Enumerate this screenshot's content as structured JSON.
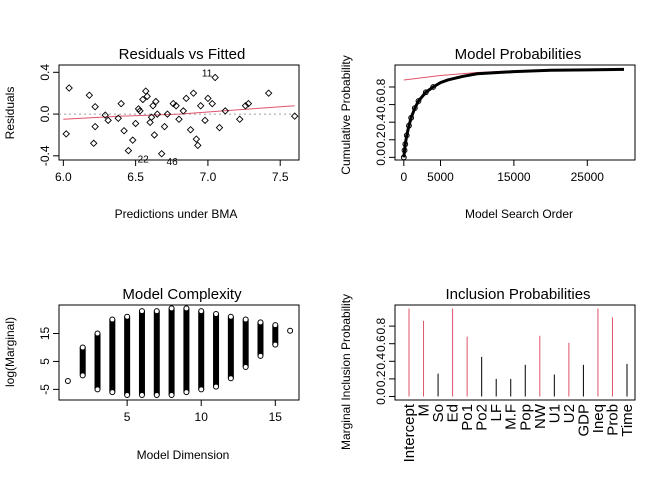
{
  "colors": {
    "red": "#DF536B",
    "black": "#000000",
    "gray": "#9E9E9E"
  },
  "chart_data": [
    {
      "type": "scatter",
      "title": "Residuals vs Fitted",
      "xlabel": "Predictions under BMA",
      "ylabel": "Residuals",
      "xlim": [
        5.97,
        7.63
      ],
      "ylim": [
        -0.44,
        0.47
      ],
      "xticks": [
        "6.0",
        "6.5",
        "7.0",
        "7.5"
      ],
      "yticks": [
        "-0.4",
        "0.0",
        "0.4"
      ],
      "reference_line": 0,
      "smooth": [
        [
          6.0,
          -0.05
        ],
        [
          6.4,
          -0.02
        ],
        [
          6.8,
          0.0
        ],
        [
          7.2,
          0.04
        ],
        [
          7.6,
          0.08
        ]
      ],
      "points": [
        [
          6.02,
          -0.19
        ],
        [
          6.04,
          0.25
        ],
        [
          6.18,
          0.18
        ],
        [
          6.21,
          -0.28
        ],
        [
          6.22,
          0.07
        ],
        [
          6.22,
          -0.12
        ],
        [
          6.29,
          -0.01
        ],
        [
          6.31,
          -0.06
        ],
        [
          6.38,
          -0.04
        ],
        [
          6.4,
          0.1
        ],
        [
          6.42,
          -0.16
        ],
        [
          6.45,
          -0.35
        ],
        [
          6.48,
          -0.25
        ],
        [
          6.5,
          -0.09
        ],
        [
          6.52,
          0.05
        ],
        [
          6.53,
          0.03
        ],
        [
          6.55,
          0.14
        ],
        [
          6.57,
          0.22
        ],
        [
          6.58,
          0.17
        ],
        [
          6.6,
          -0.08
        ],
        [
          6.61,
          -0.03
        ],
        [
          6.62,
          0.08
        ],
        [
          6.63,
          -0.2
        ],
        [
          6.64,
          0.12
        ],
        [
          6.65,
          0.0
        ],
        [
          6.68,
          -0.38
        ],
        [
          6.7,
          -0.12
        ],
        [
          6.72,
          0.0
        ],
        [
          6.76,
          0.1
        ],
        [
          6.78,
          0.08
        ],
        [
          6.8,
          -0.05
        ],
        [
          6.83,
          0.03
        ],
        [
          6.85,
          0.15
        ],
        [
          6.88,
          -0.15
        ],
        [
          6.9,
          0.2
        ],
        [
          6.92,
          -0.24
        ],
        [
          6.93,
          -0.3
        ],
        [
          6.95,
          0.08
        ],
        [
          6.98,
          -0.06
        ],
        [
          7.0,
          0.15
        ],
        [
          7.03,
          0.1
        ],
        [
          7.05,
          0.35
        ],
        [
          7.08,
          -0.13
        ],
        [
          7.12,
          0.03
        ],
        [
          7.22,
          -0.05
        ],
        [
          7.26,
          0.08
        ],
        [
          7.28,
          0.1
        ],
        [
          7.42,
          0.2
        ],
        [
          7.6,
          -0.02
        ]
      ],
      "annotations": [
        {
          "label": "11",
          "x": 7.0,
          "y": 0.35
        },
        {
          "label": "22",
          "x": 6.5,
          "y": -0.38
        },
        {
          "label": "46",
          "x": 6.7,
          "y": -0.4
        }
      ]
    },
    {
      "type": "line",
      "title": "Model Probabilities",
      "xlabel": "Model Search Order",
      "ylabel": "Cumulative Probability",
      "xlim": [
        -1200,
        31500
      ],
      "ylim": [
        -0.03,
        1.05
      ],
      "xticks": [
        "0",
        "5000",
        "15000",
        "25000"
      ],
      "yticks": [
        "0.0",
        "0.2",
        "0.4",
        "0.6",
        "0.8"
      ],
      "series": [
        {
          "color": "#DF536B",
          "x": [
            0,
            5000,
            10000,
            15000,
            20000,
            25000,
            30000
          ],
          "y": [
            0.88,
            0.93,
            0.965,
            0.985,
            0.995,
            0.998,
            1.0
          ]
        },
        {
          "color": "#000000",
          "x": [
            0,
            100,
            200,
            400,
            700,
            1000,
            1500,
            2000,
            3000,
            4000,
            5000,
            6000,
            8000,
            10000,
            12000,
            15000,
            20000,
            25000,
            30000
          ],
          "y": [
            0.0,
            0.08,
            0.15,
            0.25,
            0.36,
            0.45,
            0.56,
            0.64,
            0.74,
            0.8,
            0.85,
            0.88,
            0.92,
            0.95,
            0.96,
            0.975,
            0.99,
            0.995,
            1.0
          ]
        }
      ]
    },
    {
      "type": "scatter",
      "title": "Model Complexity",
      "xlabel": "Model Dimension",
      "ylabel": "log(Marginal)",
      "xlim": [
        0.4,
        16.6
      ],
      "ylim": [
        -8.8,
        25.2
      ],
      "xticks": [
        "5",
        "10",
        "15"
      ],
      "yticks": [
        "-5",
        "5",
        "15"
      ],
      "columns": [
        {
          "dim": 1,
          "min": -2,
          "max": -2
        },
        {
          "dim": 2,
          "min": 0,
          "max": 10
        },
        {
          "dim": 3,
          "min": -5,
          "max": 15
        },
        {
          "dim": 4,
          "min": -6,
          "max": 20
        },
        {
          "dim": 5,
          "min": -7,
          "max": 21
        },
        {
          "dim": 6,
          "min": -7,
          "max": 23
        },
        {
          "dim": 7,
          "min": -7,
          "max": 23
        },
        {
          "dim": 8,
          "min": -7,
          "max": 24
        },
        {
          "dim": 9,
          "min": -6,
          "max": 24
        },
        {
          "dim": 10,
          "min": -5,
          "max": 23
        },
        {
          "dim": 11,
          "min": -4,
          "max": 22
        },
        {
          "dim": 12,
          "min": -1,
          "max": 21
        },
        {
          "dim": 13,
          "min": 3,
          "max": 20
        },
        {
          "dim": 14,
          "min": 7,
          "max": 19
        },
        {
          "dim": 15,
          "min": 11,
          "max": 18
        },
        {
          "dim": 16,
          "min": 16,
          "max": 16
        }
      ]
    },
    {
      "type": "bar",
      "title": "Inclusion Probabilities",
      "xlabel": "",
      "ylabel": "Marginal Inclusion Probability",
      "ylim": [
        -0.04,
        1.04
      ],
      "yticks": [
        "0.0",
        "0.2",
        "0.4",
        "0.6",
        "0.8"
      ],
      "categories": [
        "Intercept",
        "M",
        "So",
        "Ed",
        "Po1",
        "Po2",
        "LF",
        "M.F",
        "Pop",
        "NW",
        "U1",
        "U2",
        "GDP",
        "Ineq",
        "Prob",
        "Time"
      ],
      "values": [
        1.0,
        0.86,
        0.26,
        1.0,
        0.68,
        0.45,
        0.2,
        0.2,
        0.36,
        0.69,
        0.25,
        0.61,
        0.36,
        1.0,
        0.9,
        0.37
      ],
      "highlighted": [
        true,
        true,
        false,
        true,
        true,
        false,
        false,
        false,
        false,
        true,
        false,
        true,
        false,
        true,
        true,
        false
      ]
    }
  ]
}
